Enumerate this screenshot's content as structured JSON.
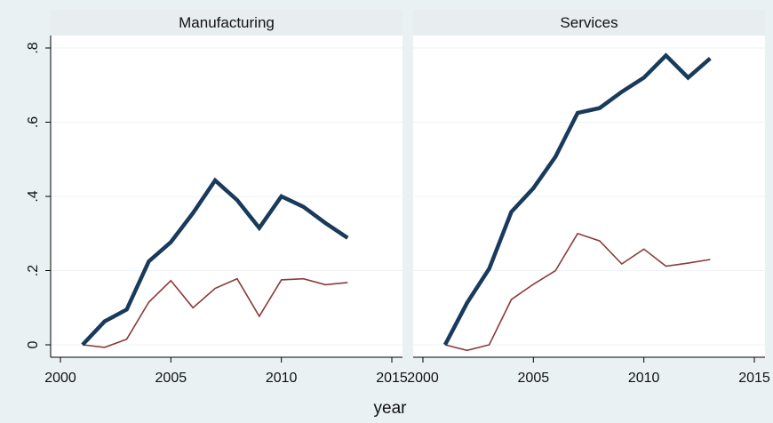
{
  "chart_data": {
    "type": "line",
    "xlabel": "year",
    "ylabel": "",
    "x_ticks": [
      "2000",
      "2005",
      "2010",
      "2015"
    ],
    "y_ticks": [
      "0",
      ".2",
      ".4",
      ".6",
      ".8"
    ],
    "xlim": [
      2000,
      2015
    ],
    "ylim": [
      0,
      0.8
    ],
    "grid": true,
    "legend": "none",
    "colors": {
      "series_1": "#1a3a5c",
      "series_2": "#8b3a3a",
      "panel_background": "#ffffff",
      "outer_background": "#eaf1f3",
      "strip_background": "#e8edf0",
      "grid": "#eef3f5"
    },
    "panels": [
      {
        "title": "Manufacturing",
        "series": [
          {
            "x": [
              2001,
              2002,
              2003,
              2004,
              2005,
              2006,
              2007,
              2008,
              2009,
              2010,
              2011,
              2012,
              2013
            ],
            "values": [
              0.0,
              0.063,
              0.095,
              0.225,
              0.277,
              0.355,
              0.443,
              0.39,
              0.315,
              0.4,
              0.372,
              0.328,
              0.288
            ]
          },
          {
            "x": [
              2001,
              2002,
              2003,
              2004,
              2005,
              2006,
              2007,
              2008,
              2009,
              2010,
              2011,
              2012,
              2013
            ],
            "values": [
              0.0,
              -0.007,
              0.015,
              0.115,
              0.173,
              0.1,
              0.152,
              0.178,
              0.077,
              0.175,
              0.178,
              0.162,
              0.168
            ]
          }
        ]
      },
      {
        "title": "Services",
        "series": [
          {
            "x": [
              2001,
              2002,
              2003,
              2004,
              2005,
              2006,
              2007,
              2008,
              2009,
              2010,
              2011,
              2012,
              2013
            ],
            "values": [
              0.0,
              0.113,
              0.205,
              0.358,
              0.422,
              0.507,
              0.625,
              0.638,
              0.682,
              0.72,
              0.78,
              0.72,
              0.772
            ]
          },
          {
            "x": [
              2001,
              2002,
              2003,
              2004,
              2005,
              2006,
              2007,
              2008,
              2009,
              2010,
              2011,
              2012,
              2013
            ],
            "values": [
              0.0,
              -0.015,
              0.0,
              0.122,
              0.163,
              0.2,
              0.3,
              0.28,
              0.218,
              0.258,
              0.212,
              0.22,
              0.23
            ]
          }
        ]
      }
    ]
  }
}
